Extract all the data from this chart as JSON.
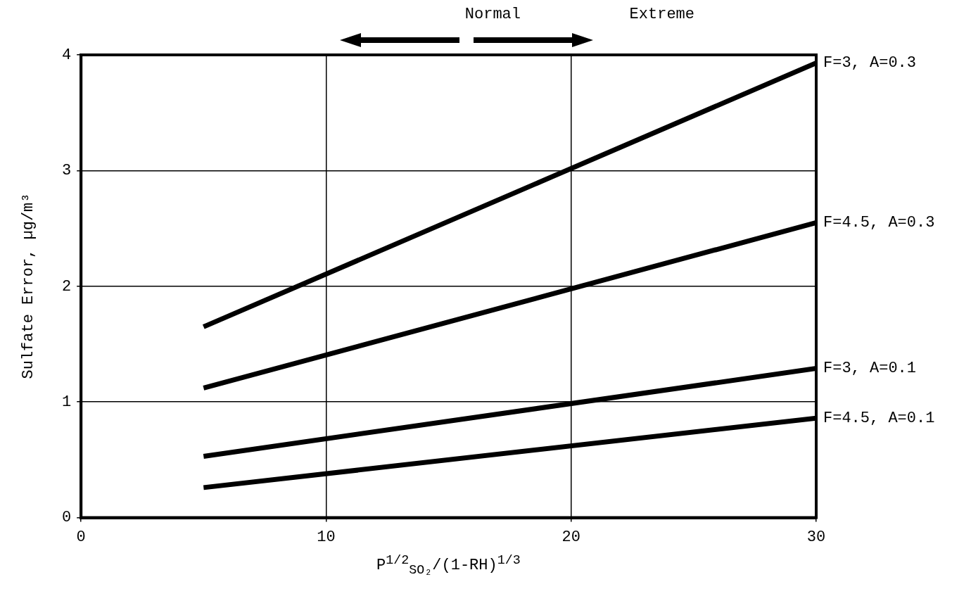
{
  "chart_data": {
    "type": "line",
    "xlabel": "P$^{1/2}$$_{SO₂}$/(1-RH)$^{1/3}$",
    "ylabel": "Sulfate Error, µg/m³",
    "annotations": [
      "Normal",
      "Extreme"
    ],
    "x": [
      5,
      30
    ],
    "series": [
      {
        "name": "F=3, A=0.3",
        "color": "#000000",
        "values": [
          1.65,
          3.93
        ]
      },
      {
        "name": "F=4.5, A=0.3",
        "color": "#000000",
        "values": [
          1.12,
          2.55
        ]
      },
      {
        "name": "F=3, A=0.1",
        "color": "#000000",
        "values": [
          0.53,
          1.29
        ]
      },
      {
        "name": "F=4.5, A=0.1",
        "color": "#000000",
        "values": [
          0.26,
          0.86
        ]
      }
    ],
    "xlim": [
      0,
      30
    ],
    "xticks": [
      0,
      10,
      20,
      30
    ],
    "ylim": [
      0,
      4
    ],
    "yticks": [
      0,
      1,
      2,
      3,
      4
    ],
    "grid": true,
    "legend": false,
    "marker": "none",
    "line_style": "solid"
  }
}
